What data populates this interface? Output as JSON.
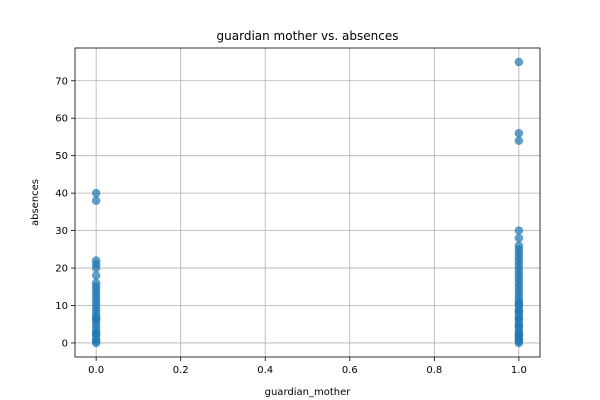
{
  "chart_data": {
    "type": "scatter",
    "title": "guardian mother vs. absences",
    "xlabel": "guardian_mother",
    "ylabel": "absences",
    "xlim": [
      -0.05,
      1.05
    ],
    "ylim": [
      -3.75,
      78.75
    ],
    "xticks": [
      0.0,
      0.2,
      0.4,
      0.6,
      0.8,
      1.0
    ],
    "xtick_labels": [
      "0.0",
      "0.2",
      "0.4",
      "0.6",
      "0.8",
      "1.0"
    ],
    "yticks": [
      0,
      10,
      20,
      30,
      40,
      50,
      60,
      70
    ],
    "ytick_labels": [
      "0",
      "10",
      "20",
      "30",
      "40",
      "50",
      "60",
      "70"
    ],
    "grid": true,
    "marker_color": "#1f77b4",
    "marker_alpha": 0.7,
    "series": [
      {
        "x": [
          0,
          0,
          0,
          0,
          0,
          0,
          0,
          0,
          0,
          0,
          0,
          0,
          0,
          0,
          0,
          0,
          0,
          0,
          0,
          0,
          0,
          0,
          0,
          0,
          0,
          0,
          1,
          1,
          1,
          1,
          1,
          1,
          1,
          1,
          1,
          1,
          1,
          1,
          1,
          1,
          1,
          1,
          1,
          1,
          1,
          1,
          1,
          1,
          1,
          1,
          1,
          1,
          1,
          1,
          1,
          1,
          1,
          1,
          1,
          1,
          1,
          1,
          1,
          1,
          1
        ],
        "y": [
          0,
          1,
          2,
          3,
          4,
          5,
          6,
          7,
          8,
          9,
          10,
          11,
          12,
          13,
          14,
          15,
          16,
          18,
          20,
          21,
          22,
          38,
          40,
          0.5,
          2.5,
          6.5,
          0,
          1,
          2,
          3,
          4,
          5,
          6,
          7,
          8,
          9,
          10,
          11,
          12,
          13,
          14,
          15,
          16,
          17,
          18,
          19,
          20,
          21,
          22,
          23,
          24,
          25,
          26,
          28,
          30,
          54,
          56,
          75,
          0.5,
          1.5,
          2.5,
          4.5,
          6.5,
          8.5,
          10.5
        ]
      }
    ]
  }
}
